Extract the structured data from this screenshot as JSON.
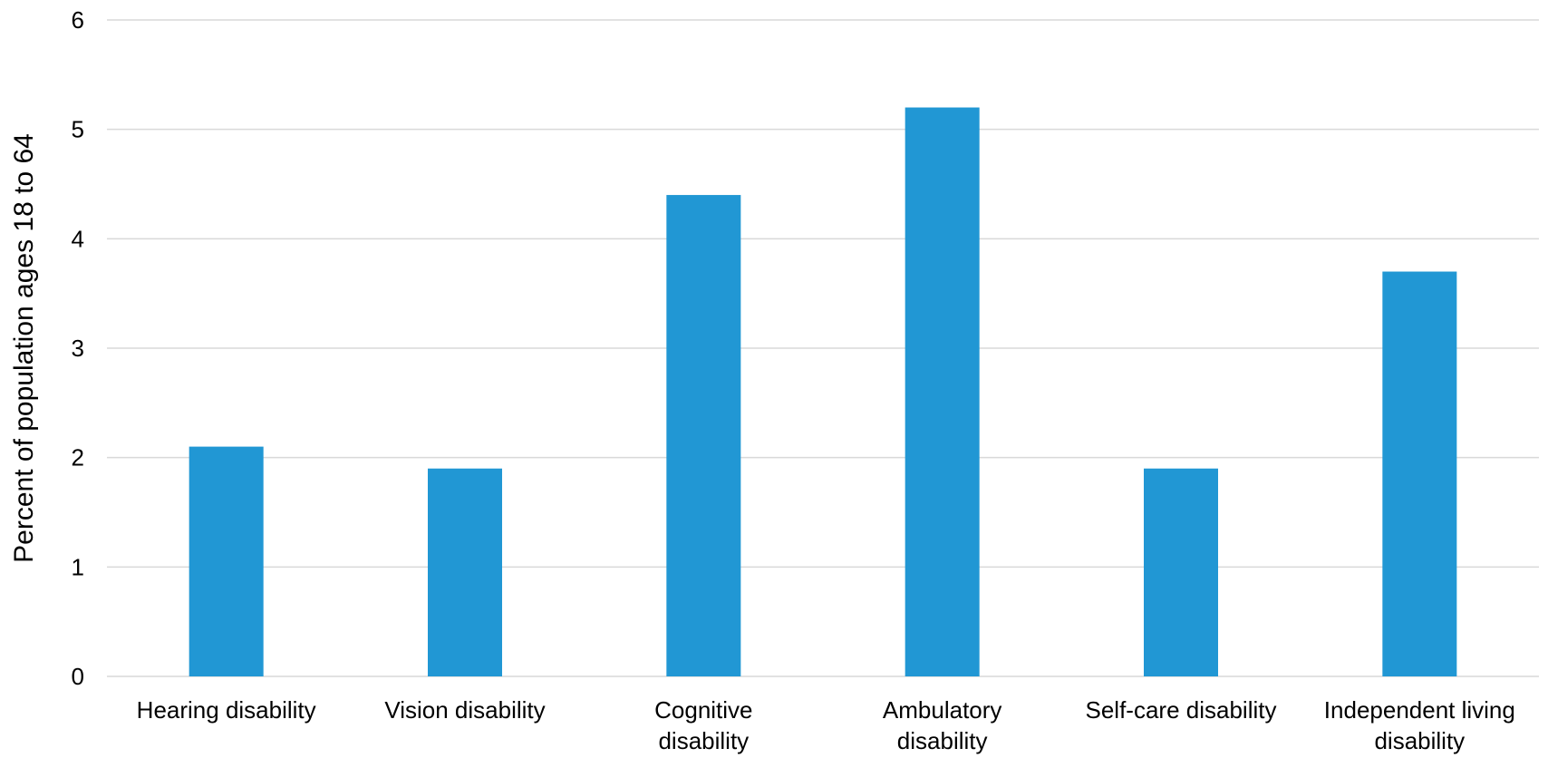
{
  "chart_data": {
    "type": "bar",
    "categories": [
      [
        "Hearing disability"
      ],
      [
        "Vision disability"
      ],
      [
        "Cognitive",
        "disability"
      ],
      [
        "Ambulatory",
        "disability"
      ],
      [
        "Self-care disability"
      ],
      [
        "Independent living",
        "disability"
      ]
    ],
    "values": [
      2.1,
      1.9,
      4.4,
      5.2,
      1.9,
      3.7
    ],
    "ylabel": "Percent of population ages 18 to 64",
    "xlabel": "",
    "ylim": [
      0,
      6
    ],
    "yticks": [
      0,
      1,
      2,
      3,
      4,
      5,
      6
    ],
    "grid": true,
    "bar_color": "#2197d4"
  }
}
